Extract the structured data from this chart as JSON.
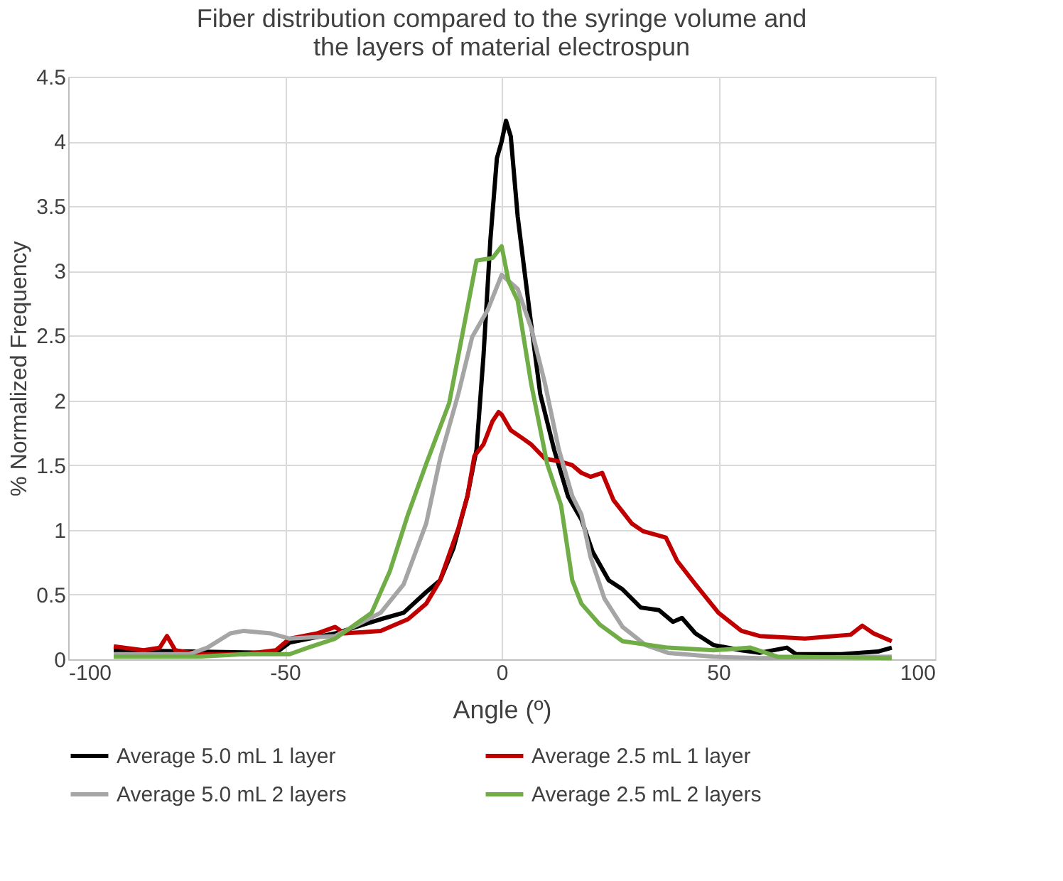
{
  "chart_data": {
    "type": "line",
    "title": "Fiber distribution compared to the syringe volume and\nthe layers of material electrospun",
    "xlabel": "Angle (º)",
    "ylabel": "% Normalized Frequency",
    "xlim": [
      -100,
      100
    ],
    "xticks": [
      -100,
      -50,
      0,
      50,
      100
    ],
    "ylim": [
      0,
      4.5
    ],
    "yticks": [
      0,
      0.5,
      1,
      1.5,
      2,
      2.5,
      3,
      3.5,
      4,
      4.5
    ],
    "grid": true,
    "legend": "bottom",
    "marker": "none",
    "line_style": "solid",
    "series": [
      {
        "name": "Average 5.0 mL 1 layer",
        "color": "#000000",
        "x": [
          -89.5,
          -52.1,
          -48.9,
          -38.4,
          -27.9,
          -22.6,
          -17.4,
          -14.2,
          -11.1,
          -7.9,
          -5.8,
          -4.2,
          -2.6,
          -1.1,
          0,
          1.0,
          2.1,
          3.7,
          5.3,
          6.8,
          8.9,
          12.1,
          15.3,
          18.4,
          21,
          24.7,
          27.9,
          32.1,
          36.3,
          39.5,
          41.6,
          44.7,
          48.9,
          55.3,
          59.5,
          65.8,
          67.9,
          78.4,
          86.8,
          90
        ],
        "values": [
          0.07,
          0.05,
          0.13,
          0.2,
          0.31,
          0.36,
          0.52,
          0.61,
          0.86,
          1.26,
          1.62,
          2.34,
          3.24,
          3.87,
          4.0,
          4.16,
          4.04,
          3.42,
          2.99,
          2.59,
          2.05,
          1.62,
          1.26,
          1.08,
          0.83,
          0.61,
          0.54,
          0.4,
          0.38,
          0.29,
          0.32,
          0.2,
          0.11,
          0.07,
          0.05,
          0.09,
          0.04,
          0.04,
          0.06,
          0.09
        ]
      },
      {
        "name": "Average 2.5 mL 1 layer",
        "color": "#c00000",
        "x": [
          -89.5,
          -82.6,
          -78.9,
          -77.2,
          -75.3,
          -70,
          -59.5,
          -52.1,
          -48.9,
          -42.6,
          -38.4,
          -36.3,
          -27.9,
          -21.6,
          -17.4,
          -14.2,
          -10,
          -7.9,
          -6.3,
          -4.2,
          -2.1,
          -0.7,
          0,
          2.1,
          4.7,
          6.8,
          10,
          13.2,
          16.3,
          18.4,
          20.5,
          23.2,
          25.8,
          30,
          32.6,
          37.9,
          40.5,
          44.7,
          50,
          55.3,
          59.5,
          70,
          80.5,
          83.2,
          85.8,
          90
        ],
        "values": [
          0.1,
          0.07,
          0.09,
          0.18,
          0.07,
          0.04,
          0.04,
          0.07,
          0.16,
          0.2,
          0.25,
          0.2,
          0.22,
          0.31,
          0.43,
          0.61,
          1.01,
          1.26,
          1.57,
          1.66,
          1.84,
          1.91,
          1.89,
          1.77,
          1.71,
          1.66,
          1.55,
          1.53,
          1.5,
          1.44,
          1.41,
          1.44,
          1.23,
          1.05,
          0.99,
          0.94,
          0.76,
          0.58,
          0.36,
          0.22,
          0.18,
          0.16,
          0.19,
          0.26,
          0.2,
          0.14
        ]
      },
      {
        "name": "Average 5.0 mL 2 layers",
        "color": "#a5a5a5",
        "x": [
          -89.5,
          -72.1,
          -67.9,
          -62.6,
          -59.5,
          -53.2,
          -48.9,
          -38.4,
          -27.9,
          -22.6,
          -17.4,
          -14.2,
          -10,
          -6.8,
          -3.2,
          0,
          3.7,
          6.8,
          10,
          13.2,
          16.3,
          18.4,
          20.5,
          23.7,
          27.9,
          33.2,
          38.4,
          48.9,
          59.5,
          90
        ],
        "values": [
          0.04,
          0.04,
          0.09,
          0.2,
          0.22,
          0.2,
          0.16,
          0.18,
          0.36,
          0.58,
          1.05,
          1.55,
          2.05,
          2.49,
          2.7,
          2.97,
          2.86,
          2.56,
          2.13,
          1.62,
          1.26,
          1.12,
          0.79,
          0.47,
          0.25,
          0.11,
          0.05,
          0.02,
          0.01,
          0.02
        ]
      },
      {
        "name": "Average 2.5 mL 2 layers",
        "color": "#70ad47",
        "x": [
          -89.5,
          -70,
          -59.5,
          -48.9,
          -44.7,
          -38.4,
          -30,
          -25.8,
          -21.6,
          -17.4,
          -12.1,
          -9,
          -5.8,
          -2.1,
          0,
          1.6,
          3.7,
          6.8,
          10.5,
          13.7,
          16.3,
          18.4,
          22.6,
          27.9,
          38.4,
          48.9,
          57.4,
          63.7,
          90
        ],
        "values": [
          0.02,
          0.02,
          0.04,
          0.04,
          0.09,
          0.16,
          0.36,
          0.68,
          1.12,
          1.51,
          1.98,
          2.52,
          3.08,
          3.1,
          3.19,
          2.92,
          2.77,
          2.13,
          1.51,
          1.19,
          0.61,
          0.43,
          0.27,
          0.14,
          0.09,
          0.07,
          0.09,
          0.02,
          0.01
        ]
      }
    ]
  }
}
